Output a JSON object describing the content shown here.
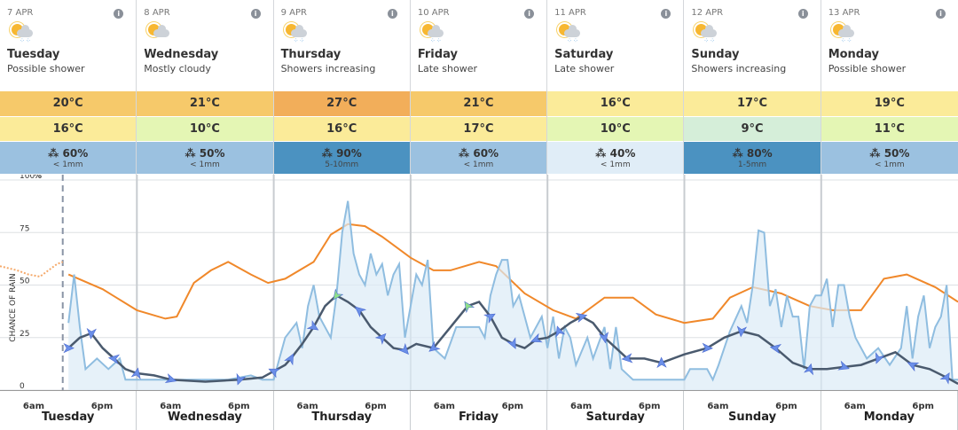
{
  "days": [
    {
      "date": "7 APR",
      "name": "Tuesday",
      "desc": "Possible shower",
      "max": "20°C",
      "min": "16°C",
      "rain": "60%",
      "amount": "< 1mm",
      "icon": "sun-cloud-rain-icon",
      "max_color": "#f6c96a",
      "min_color": "#fbeb99",
      "rain_color": "#9bc1e0"
    },
    {
      "date": "8 APR",
      "name": "Wednesday",
      "desc": "Mostly cloudy",
      "max": "21°C",
      "min": "10°C",
      "rain": "50%",
      "amount": "< 1mm",
      "icon": "sun-cloud-icon",
      "max_color": "#f6c96a",
      "min_color": "#e4f6b4",
      "rain_color": "#9bc1e0"
    },
    {
      "date": "9 APR",
      "name": "Thursday",
      "desc": "Showers increasing",
      "max": "27°C",
      "min": "16°C",
      "rain": "90%",
      "amount": "5-10mm",
      "icon": "sun-cloud-rain-icon",
      "max_color": "#f2ae5a",
      "min_color": "#fbeb99",
      "rain_color": "#4b92c1"
    },
    {
      "date": "10 APR",
      "name": "Friday",
      "desc": "Late shower",
      "max": "21°C",
      "min": "17°C",
      "rain": "60%",
      "amount": "< 1mm",
      "icon": "sun-cloud-rain-icon",
      "max_color": "#f6c96a",
      "min_color": "#fbeb99",
      "rain_color": "#9bc1e0"
    },
    {
      "date": "11 APR",
      "name": "Saturday",
      "desc": "Late shower",
      "max": "16°C",
      "min": "10°C",
      "rain": "40%",
      "amount": "< 1mm",
      "icon": "sun-cloud-rain-icon",
      "max_color": "#fbeb99",
      "min_color": "#e4f6b4",
      "rain_color": "#e0edf7"
    },
    {
      "date": "12 APR",
      "name": "Sunday",
      "desc": "Showers increasing",
      "max": "17°C",
      "min": "9°C",
      "rain": "80%",
      "amount": "1-5mm",
      "icon": "sun-cloud-rain-icon",
      "max_color": "#fbeb99",
      "min_color": "#d5eed9",
      "rain_color": "#4b92c1"
    },
    {
      "date": "13 APR",
      "name": "Monday",
      "desc": "Possible shower",
      "max": "19°C",
      "min": "11°C",
      "rain": "50%",
      "amount": "< 1mm",
      "icon": "sun-cloud-rain-icon",
      "max_color": "#fbeb99",
      "min_color": "#e4f6b4",
      "rain_color": "#9bc1e0"
    }
  ],
  "axis": {
    "ticks": [
      "0",
      "25",
      "50",
      "75",
      "100"
    ],
    "unit": "%",
    "ylabel": "CHANCE OF RAIN",
    "time_ticks": [
      "6am",
      "6pm"
    ]
  },
  "chart_data": {
    "type": "line",
    "x_unit": "hours from Tuesday 00:00",
    "ylim": [
      0,
      100
    ],
    "now_hour": 11,
    "series": [
      {
        "name": "temperature",
        "color": "#f0882a",
        "points": [
          [
            12,
            55
          ],
          [
            18,
            48
          ],
          [
            24,
            38
          ],
          [
            29,
            34
          ],
          [
            31,
            35
          ],
          [
            34,
            51
          ],
          [
            37,
            57
          ],
          [
            40,
            61
          ],
          [
            44,
            55
          ],
          [
            47,
            51
          ],
          [
            50,
            53
          ],
          [
            55,
            61
          ],
          [
            58,
            74
          ],
          [
            61,
            79
          ],
          [
            64,
            78
          ],
          [
            67,
            73
          ],
          [
            72,
            63
          ],
          [
            76,
            57
          ],
          [
            79,
            57
          ],
          [
            84,
            61
          ],
          [
            87,
            59
          ],
          [
            92,
            46
          ],
          [
            97,
            38
          ],
          [
            101,
            34
          ],
          [
            106,
            44
          ],
          [
            111,
            44
          ],
          [
            115,
            36
          ],
          [
            120,
            32
          ],
          [
            125,
            34
          ],
          [
            128,
            44
          ],
          [
            132,
            49
          ],
          [
            137,
            46
          ],
          [
            142,
            40
          ],
          [
            146,
            38
          ],
          [
            151,
            38
          ],
          [
            155,
            53
          ],
          [
            159,
            55
          ],
          [
            164,
            49
          ],
          [
            168,
            42
          ]
        ]
      },
      {
        "name": "temperature-history",
        "color": "#f5a96a",
        "points": [
          [
            0,
            59
          ],
          [
            3,
            57
          ],
          [
            5,
            55
          ],
          [
            7,
            54
          ],
          [
            8,
            56
          ],
          [
            9,
            58
          ],
          [
            10,
            60
          ],
          [
            11,
            61
          ]
        ]
      },
      {
        "name": "chance-of-rain",
        "color": "#8fbde0",
        "points": [
          [
            12,
            32
          ],
          [
            13,
            55
          ],
          [
            14,
            30
          ],
          [
            15,
            10
          ],
          [
            17,
            15
          ],
          [
            19,
            10
          ],
          [
            21,
            15
          ],
          [
            22,
            5
          ],
          [
            30,
            5
          ],
          [
            40,
            5
          ],
          [
            44,
            7
          ],
          [
            46,
            5
          ],
          [
            48,
            5
          ],
          [
            49,
            15
          ],
          [
            50,
            25
          ],
          [
            52,
            32
          ],
          [
            53,
            20
          ],
          [
            54,
            40
          ],
          [
            55,
            50
          ],
          [
            56,
            35
          ],
          [
            58,
            25
          ],
          [
            59,
            45
          ],
          [
            60,
            75
          ],
          [
            61,
            90
          ],
          [
            62,
            65
          ],
          [
            63,
            55
          ],
          [
            64,
            50
          ],
          [
            65,
            65
          ],
          [
            66,
            55
          ],
          [
            67,
            60
          ],
          [
            68,
            45
          ],
          [
            69,
            55
          ],
          [
            70,
            60
          ],
          [
            71,
            25
          ],
          [
            72,
            40
          ],
          [
            73,
            55
          ],
          [
            74,
            50
          ],
          [
            75,
            62
          ],
          [
            76,
            20
          ],
          [
            78,
            15
          ],
          [
            80,
            30
          ],
          [
            82,
            30
          ],
          [
            84,
            30
          ],
          [
            85,
            25
          ],
          [
            86,
            45
          ],
          [
            87,
            55
          ],
          [
            88,
            62
          ],
          [
            89,
            62
          ],
          [
            90,
            40
          ],
          [
            91,
            45
          ],
          [
            93,
            25
          ],
          [
            95,
            35
          ],
          [
            96,
            20
          ],
          [
            97,
            35
          ],
          [
            98,
            15
          ],
          [
            99,
            30
          ],
          [
            100,
            25
          ],
          [
            101,
            12
          ],
          [
            103,
            25
          ],
          [
            104,
            15
          ],
          [
            106,
            30
          ],
          [
            107,
            10
          ],
          [
            108,
            30
          ],
          [
            109,
            10
          ],
          [
            111,
            5
          ],
          [
            117,
            5
          ],
          [
            120,
            5
          ],
          [
            121,
            10
          ],
          [
            124,
            10
          ],
          [
            125,
            5
          ],
          [
            126,
            12
          ],
          [
            128,
            28
          ],
          [
            130,
            40
          ],
          [
            131,
            32
          ],
          [
            132,
            50
          ],
          [
            133,
            76
          ],
          [
            134,
            75
          ],
          [
            135,
            40
          ],
          [
            136,
            48
          ],
          [
            137,
            30
          ],
          [
            138,
            45
          ],
          [
            139,
            35
          ],
          [
            140,
            35
          ],
          [
            141,
            10
          ],
          [
            142,
            40
          ],
          [
            143,
            45
          ],
          [
            144,
            45
          ],
          [
            145,
            53
          ],
          [
            146,
            30
          ],
          [
            147,
            50
          ],
          [
            148,
            50
          ],
          [
            149,
            35
          ],
          [
            150,
            25
          ],
          [
            152,
            15
          ],
          [
            154,
            20
          ],
          [
            156,
            12
          ],
          [
            158,
            20
          ],
          [
            159,
            40
          ],
          [
            160,
            15
          ],
          [
            161,
            35
          ],
          [
            162,
            45
          ],
          [
            163,
            20
          ],
          [
            164,
            30
          ],
          [
            165,
            35
          ],
          [
            166,
            50
          ],
          [
            167,
            5
          ],
          [
            168,
            5
          ]
        ]
      },
      {
        "name": "wind",
        "color": "#4a5a6e",
        "points": [
          [
            12,
            20
          ],
          [
            14,
            25
          ],
          [
            16,
            27
          ],
          [
            18,
            20
          ],
          [
            20,
            15
          ],
          [
            22,
            10
          ],
          [
            24,
            8
          ],
          [
            27,
            7
          ],
          [
            30,
            5
          ],
          [
            36,
            4
          ],
          [
            42,
            5
          ],
          [
            46,
            6
          ],
          [
            48,
            9
          ],
          [
            50,
            12
          ],
          [
            51,
            15
          ],
          [
            53,
            22
          ],
          [
            55,
            30
          ],
          [
            57,
            40
          ],
          [
            59,
            45
          ],
          [
            61,
            42
          ],
          [
            63,
            38
          ],
          [
            65,
            30
          ],
          [
            67,
            25
          ],
          [
            69,
            20
          ],
          [
            71,
            19
          ],
          [
            73,
            22
          ],
          [
            76,
            20
          ],
          [
            79,
            30
          ],
          [
            82,
            40
          ],
          [
            84,
            42
          ],
          [
            86,
            35
          ],
          [
            88,
            25
          ],
          [
            90,
            22
          ],
          [
            92,
            20
          ],
          [
            94,
            24
          ],
          [
            96,
            25
          ],
          [
            98,
            28
          ],
          [
            100,
            32
          ],
          [
            102,
            35
          ],
          [
            104,
            32
          ],
          [
            106,
            25
          ],
          [
            108,
            20
          ],
          [
            110,
            15
          ],
          [
            113,
            15
          ],
          [
            116,
            13
          ],
          [
            120,
            17
          ],
          [
            124,
            20
          ],
          [
            127,
            25
          ],
          [
            130,
            28
          ],
          [
            133,
            26
          ],
          [
            136,
            20
          ],
          [
            139,
            13
          ],
          [
            142,
            10
          ],
          [
            145,
            10
          ],
          [
            148,
            11
          ],
          [
            151,
            12
          ],
          [
            154,
            15
          ],
          [
            157,
            18
          ],
          [
            160,
            12
          ],
          [
            163,
            10
          ],
          [
            166,
            6
          ],
          [
            168,
            3
          ]
        ]
      }
    ]
  }
}
